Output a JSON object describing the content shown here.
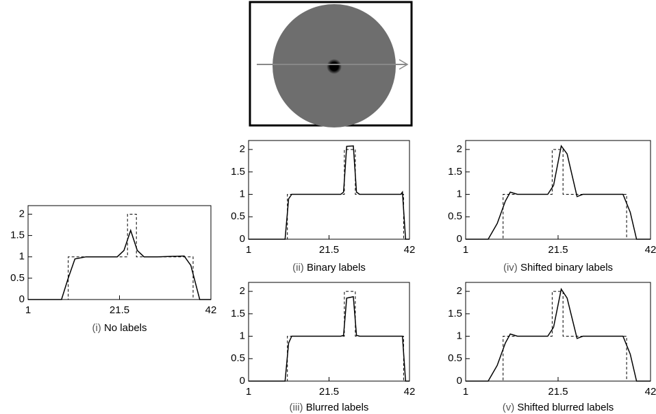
{
  "chart_data": [
    {
      "type": "line",
      "label_prefix": "(i)",
      "title": "No labels",
      "xlim": [
        1,
        42
      ],
      "xticks": [
        1,
        21.5,
        42
      ],
      "ylim": [
        0,
        2.2
      ],
      "yticks": [
        0,
        0.5,
        1,
        1.5,
        2
      ],
      "series": [
        {
          "color": "#000000",
          "dashed": true,
          "x": [
            1,
            10,
            10,
            23.3,
            23.3,
            25.3,
            25.3,
            38,
            38,
            42
          ],
          "values": [
            0,
            0,
            1,
            1,
            2,
            2,
            1,
            1,
            0,
            0
          ]
        },
        {
          "color": "#000000",
          "dashed": false,
          "x": [
            1,
            8.5,
            10,
            11.5,
            14,
            21,
            22.5,
            24,
            25.5,
            27,
            30,
            36,
            37.5,
            39.5,
            42
          ],
          "values": [
            0,
            0,
            0.5,
            0.95,
            1,
            1,
            1.15,
            1.62,
            1.15,
            1,
            1,
            1.02,
            0.8,
            0,
            0
          ]
        }
      ]
    },
    {
      "type": "line",
      "label_prefix": "(ii)",
      "title": "Binary labels",
      "xlim": [
        1,
        42
      ],
      "xticks": [
        1,
        21.5,
        42
      ],
      "ylim": [
        0,
        2.2
      ],
      "yticks": [
        0,
        0.5,
        1,
        1.5,
        2
      ],
      "series": [
        {
          "color": "#000000",
          "dashed": true,
          "x": [
            1,
            10.9,
            10.9,
            25.4,
            25.4,
            28.2,
            28.2,
            40.5,
            40.5,
            42
          ],
          "values": [
            0,
            0,
            1,
            1,
            2,
            2,
            1,
            1,
            0,
            0
          ]
        },
        {
          "color": "#000000",
          "dashed": false,
          "x": [
            1,
            10.3,
            11.2,
            12,
            24.5,
            25.2,
            26,
            27.7,
            28.5,
            29.3,
            39.8,
            40.2,
            41,
            42
          ],
          "values": [
            0,
            0,
            0.9,
            1,
            1,
            1.05,
            2.07,
            2.08,
            1.05,
            1,
            1,
            1.05,
            0,
            0
          ]
        }
      ]
    },
    {
      "type": "line",
      "label_prefix": "(iii)",
      "title": "Blurred labels",
      "xlim": [
        1,
        42
      ],
      "xticks": [
        1,
        21.5,
        42
      ],
      "ylim": [
        0,
        2.2
      ],
      "yticks": [
        0,
        0.5,
        1,
        1.5,
        2
      ],
      "series": [
        {
          "color": "#000000",
          "dashed": true,
          "x": [
            1,
            10.9,
            10.9,
            25.4,
            25.4,
            28.2,
            28.2,
            40.5,
            40.5,
            42
          ],
          "values": [
            0,
            0,
            1,
            1,
            2,
            2,
            1,
            1,
            0,
            0
          ]
        },
        {
          "color": "#000000",
          "dashed": false,
          "x": [
            1,
            10.3,
            11.2,
            12,
            24.5,
            25.2,
            26,
            27.7,
            28.5,
            29.3,
            39.8,
            40.2,
            41,
            42
          ],
          "values": [
            0,
            0,
            0.85,
            1,
            1,
            1.02,
            1.85,
            1.88,
            1.02,
            1,
            1,
            1,
            0,
            0
          ]
        }
      ]
    },
    {
      "type": "line",
      "label_prefix": "(iv)",
      "title": "Shifted binary labels",
      "xlim": [
        1,
        42
      ],
      "xticks": [
        1,
        21.5,
        42
      ],
      "ylim": [
        0,
        2.2
      ],
      "yticks": [
        0,
        0.5,
        1,
        1.5,
        2
      ],
      "series": [
        {
          "color": "#000000",
          "dashed": true,
          "x": [
            1,
            9.3,
            9.3,
            20.2,
            20.2,
            22.6,
            22.6,
            36.7,
            36.7,
            42
          ],
          "values": [
            0,
            0,
            1,
            1,
            2,
            2,
            1,
            1,
            0,
            0
          ]
        },
        {
          "color": "#000000",
          "dashed": false,
          "x": [
            1,
            6,
            8,
            9.8,
            10.9,
            12.5,
            19.2,
            20.5,
            22.2,
            23.5,
            25.7,
            27,
            35.9,
            37.5,
            38.9,
            42
          ],
          "values": [
            0,
            0,
            0.35,
            0.85,
            1.05,
            1,
            1,
            1.2,
            2.08,
            1.9,
            0.95,
            1,
            1,
            0.6,
            0,
            0
          ]
        }
      ]
    },
    {
      "type": "line",
      "label_prefix": "(v)",
      "title": "Shifted blurred labels",
      "xlim": [
        1,
        42
      ],
      "xticks": [
        1,
        21.5,
        42
      ],
      "ylim": [
        0,
        2.2
      ],
      "yticks": [
        0,
        0.5,
        1,
        1.5,
        2
      ],
      "series": [
        {
          "color": "#000000",
          "dashed": true,
          "x": [
            1,
            9.3,
            9.3,
            20.2,
            20.2,
            22.6,
            22.6,
            36.7,
            36.7,
            42
          ],
          "values": [
            0,
            0,
            1,
            1,
            2,
            2,
            1,
            1,
            0,
            0
          ]
        },
        {
          "color": "#000000",
          "dashed": false,
          "x": [
            1,
            6,
            8,
            9.8,
            10.9,
            12.5,
            19.2,
            20.5,
            22.2,
            23.5,
            25.7,
            27,
            35.9,
            37.5,
            38.9,
            42
          ],
          "values": [
            0,
            0,
            0.35,
            0.85,
            1.05,
            1,
            1,
            1.2,
            2.05,
            1.85,
            0.95,
            1,
            1,
            0.6,
            0,
            0
          ]
        }
      ]
    }
  ]
}
